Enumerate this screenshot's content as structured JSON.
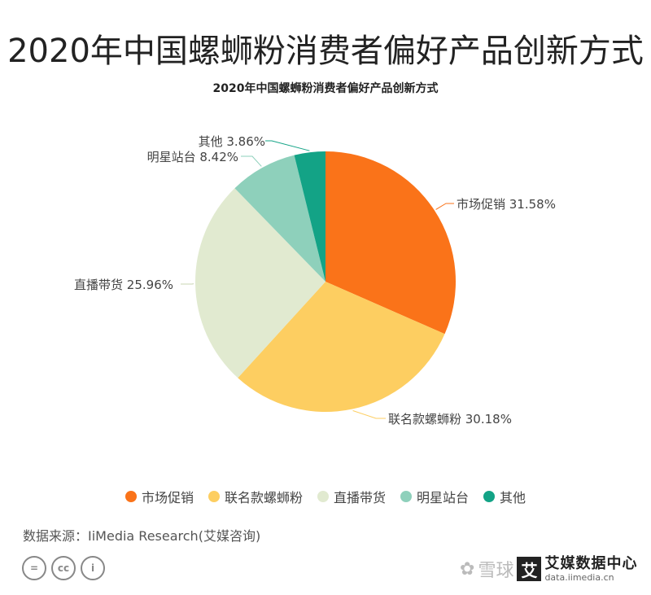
{
  "header": {
    "title": "2020年中国螺蛳粉消费者偏好产品创新方式"
  },
  "chart_data": {
    "type": "pie",
    "title": "2020年中国螺蛳粉消费者偏好产品创新方式",
    "slices": [
      {
        "label": "市场促销",
        "value": 31.58,
        "value_label": "31.58%",
        "color": "#FA7319"
      },
      {
        "label": "联名款螺蛳粉",
        "value": 30.18,
        "value_label": "30.18%",
        "color": "#FDCE61"
      },
      {
        "label": "直播带货",
        "value": 25.96,
        "value_label": "25.96%",
        "color": "#E1EAD0"
      },
      {
        "label": "明星站台",
        "value": 8.42,
        "value_label": "8.42%",
        "color": "#8ED0BB"
      },
      {
        "label": "其他",
        "value": 3.86,
        "value_label": "3.86%",
        "color": "#13A386"
      }
    ],
    "start": "12 o'clock, clockwise",
    "legend_position": "bottom"
  },
  "legend": {
    "items": [
      {
        "label": "市场促销",
        "color": "#FA7319"
      },
      {
        "label": "联名款螺蛳粉",
        "color": "#FDCE61"
      },
      {
        "label": "直播带货",
        "color": "#E1EAD0"
      },
      {
        "label": "明星站台",
        "color": "#8ED0BB"
      },
      {
        "label": "其他",
        "color": "#13A386"
      }
    ]
  },
  "footer": {
    "source": "数据来源：IiMedia Research(艾媒咨询)",
    "license_icons": [
      "equals-icon",
      "cc-icon",
      "person-icon"
    ],
    "license_glyphs": [
      "=",
      "cc",
      "i"
    ]
  },
  "watermark": {
    "xueqiu_symbol": "✿",
    "xueqiu": "雪球",
    "logo_char": "艾",
    "brand": "艾媒数据中心",
    "url": "data.iimedia.cn"
  }
}
